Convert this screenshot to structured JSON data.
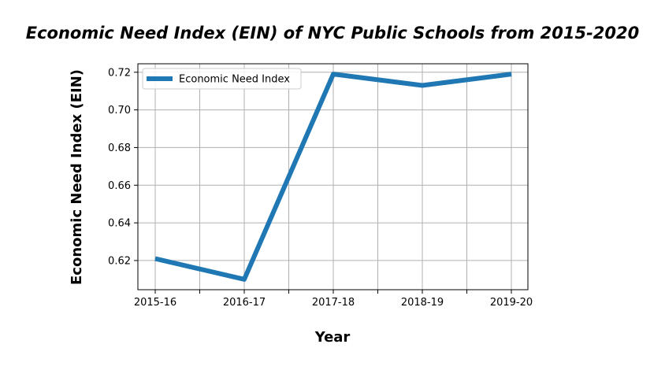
{
  "chart_data": {
    "type": "line",
    "title": "Economic Need Index (EIN) of NYC Public Schools from 2015-2020",
    "xlabel": "Year",
    "ylabel": "Economic Need Index (EIN)",
    "categories": [
      "2015-16",
      "2016-17",
      "2017-18",
      "2018-19",
      "2019-20"
    ],
    "series": [
      {
        "name": "Economic Need Index",
        "values": [
          0.621,
          0.61,
          0.719,
          0.713,
          0.719
        ],
        "color": "#1f77b4"
      }
    ],
    "yticks": [
      "0.62",
      "0.64",
      "0.66",
      "0.68",
      "0.70",
      "0.72"
    ],
    "ylim": [
      0.6045,
      0.7245
    ],
    "grid": true,
    "minor_x_ticks": true,
    "legend_position": "upper-left"
  }
}
